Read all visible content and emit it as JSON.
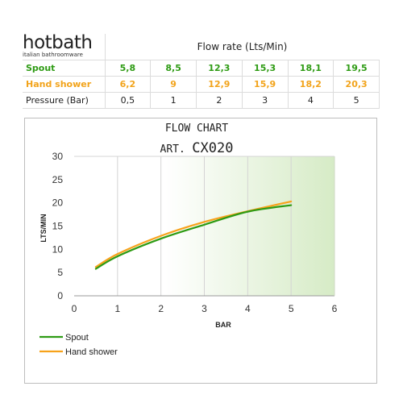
{
  "brand": {
    "name": "hotbath",
    "tagline": "italian bathroomware"
  },
  "table": {
    "header": "Flow rate (Lts/Min)",
    "rows": [
      {
        "label": "Spout",
        "values": [
          "5,8",
          "8,5",
          "12,3",
          "15,3",
          "18,1",
          "19,5"
        ]
      },
      {
        "label": "Hand shower",
        "values": [
          "6,2",
          "9",
          "12,9",
          "15,9",
          "18,2",
          "20,3"
        ]
      },
      {
        "label": "Pressure (Bar)",
        "values": [
          "0,5",
          "1",
          "2",
          "3",
          "4",
          "5"
        ]
      }
    ]
  },
  "colors": {
    "spout": "#2e9b14",
    "hand_shower": "#f7a21b",
    "gradient_end": "#d6ebc6"
  },
  "chart_data": {
    "type": "line",
    "title": "FLOW CHART",
    "subtitle_prefix": "ART.",
    "subtitle_code": "CX020",
    "xlabel": "BAR",
    "ylabel": "LTS/MIN",
    "xlim": [
      0,
      6
    ],
    "ylim": [
      0,
      30
    ],
    "xticks": [
      "0",
      "1",
      "2",
      "3",
      "4",
      "5",
      "6"
    ],
    "yticks": [
      "0",
      "5",
      "10",
      "15",
      "20",
      "25",
      "30"
    ],
    "grid": "vertical",
    "legend_position": "bottom-left",
    "x": [
      0.5,
      1,
      2,
      3,
      4,
      5
    ],
    "series": [
      {
        "name": "Spout",
        "values": [
          5.8,
          8.5,
          12.3,
          15.3,
          18.1,
          19.5
        ]
      },
      {
        "name": "Hand shower",
        "values": [
          6.2,
          9,
          12.9,
          15.9,
          18.2,
          20.3
        ]
      }
    ]
  }
}
